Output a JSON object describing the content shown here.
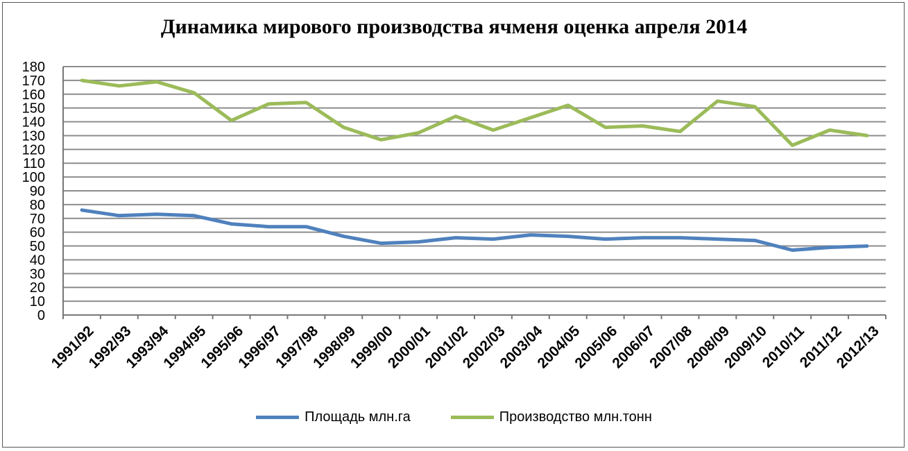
{
  "chart_data": {
    "type": "line",
    "title": "Динамика мирового производства ячменя оценка апреля 2014",
    "categories": [
      "1991/92",
      "1992/93",
      "1993/94",
      "1994/95",
      "1995/96",
      "1996/97",
      "1997/98",
      "1998/99",
      "1999/00",
      "2000/01",
      "2001/02",
      "2002/03",
      "2003/04",
      "2004/05",
      "2005/06",
      "2006/07",
      "2007/08",
      "2008/09",
      "2009/10",
      "2010/11",
      "2011/12",
      "2012/13"
    ],
    "series": [
      {
        "name": "Площадь млн.га",
        "color": "#4f81bd",
        "values": [
          76,
          72,
          73,
          72,
          66,
          64,
          64,
          57,
          52,
          53,
          56,
          55,
          58,
          57,
          55,
          56,
          56,
          55,
          54,
          47,
          49,
          50
        ]
      },
      {
        "name": "Производство млн.тонн",
        "color": "#9bbb59",
        "values": [
          170,
          166,
          169,
          161,
          141,
          153,
          154,
          136,
          127,
          132,
          144,
          134,
          143,
          152,
          136,
          137,
          133,
          155,
          151,
          123,
          134,
          130
        ]
      }
    ],
    "ylim": [
      0,
      180
    ],
    "ytick_step": 10,
    "grid": true,
    "legend_position": "bottom"
  }
}
